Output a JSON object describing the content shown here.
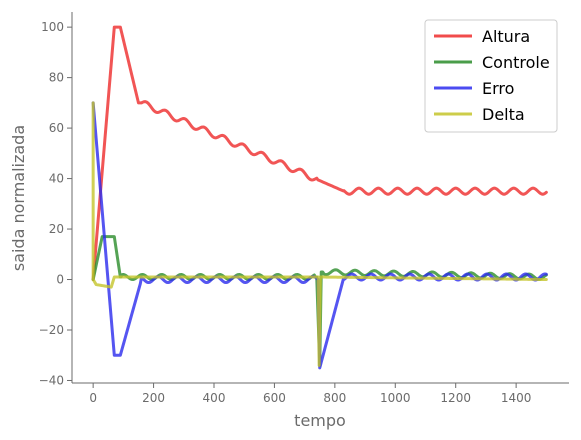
{
  "chart_data": {
    "type": "line",
    "title": "",
    "xlabel": "tempo",
    "ylabel": "saida normalizada",
    "xlim": [
      -70,
      1575
    ],
    "ylim": [
      -41,
      106
    ],
    "xticks": [
      0,
      200,
      400,
      600,
      800,
      1000,
      1200,
      1400
    ],
    "yticks": [
      -40,
      -20,
      0,
      20,
      40,
      60,
      80,
      100
    ],
    "xtick_labels": [
      "0",
      "200",
      "400",
      "600",
      "800",
      "1000",
      "1200",
      "1400"
    ],
    "ytick_labels": [
      "−40",
      "−20",
      "0",
      "20",
      "40",
      "60",
      "80",
      "100"
    ],
    "grid": false,
    "legend_position": "top-right",
    "series": [
      {
        "name": "Altura",
        "color": "#ee2b2b",
        "x": [
          0,
          70,
          90,
          150,
          160,
          830,
          1500
        ],
        "y": [
          0,
          100,
          100,
          70,
          70,
          35,
          35
        ],
        "oscillation": "around 70 from x=160 to x=740, around 35 from x=830 to x=1500, amplitude ~1.2"
      },
      {
        "name": "Controle",
        "color": "#2a8c2a",
        "x": [
          0,
          30,
          70,
          90,
          740,
          750,
          755,
          1500
        ],
        "y": [
          0,
          17,
          17,
          1,
          1,
          -34,
          3,
          1
        ],
        "oscillation": "around 1 from x=90 to x=1500, amplitude ~1"
      },
      {
        "name": "Erro",
        "color": "#2b2bee",
        "x": [
          0,
          70,
          90,
          160,
          745,
          750,
          830,
          1500
        ],
        "y": [
          70,
          -30,
          -30,
          0,
          0,
          -35,
          1,
          1
        ],
        "oscillation": "around 0.5 from x=160 to x=1500, amplitude ~1.2"
      },
      {
        "name": "Delta",
        "color": "#c4c42a",
        "x": [
          0,
          0,
          10,
          60,
          70,
          75,
          745,
          748,
          752,
          1500
        ],
        "y": [
          70,
          0,
          -2,
          -3,
          1,
          1,
          1,
          -34,
          1,
          0
        ],
        "oscillation": "none"
      }
    ]
  }
}
